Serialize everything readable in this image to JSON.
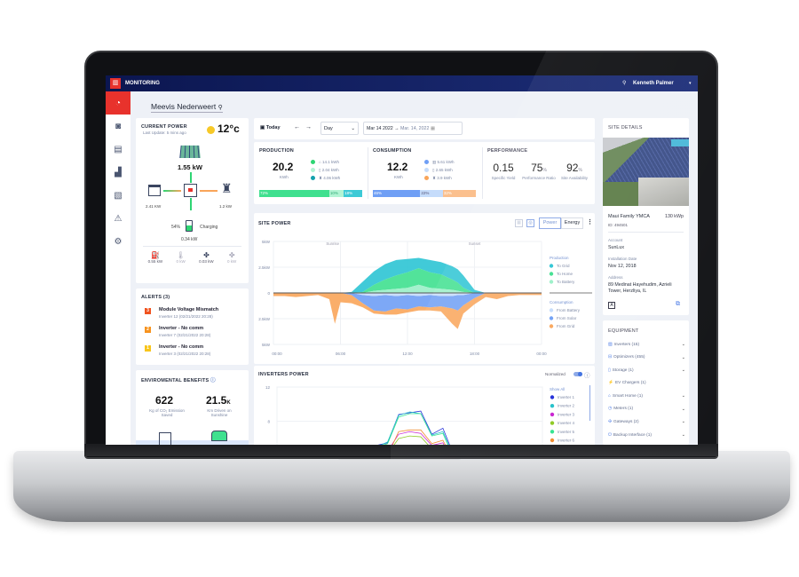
{
  "topbar": {
    "app": "MONITORING",
    "user": "Kenneth Palmer"
  },
  "site": {
    "name": "Meevis Nederweert"
  },
  "current_power": {
    "title": "CURRENT POWER",
    "updated": "Last Update: 5 mins ago",
    "weather": "12°c",
    "solar": "1.55 kW",
    "home": "2.41 KW",
    "grid": "1.2 kW",
    "battery_pct": "54%",
    "battery_state": "Charging",
    "battery_kw": "0.34 kW",
    "devices": [
      "0.55 kW",
      "0 kW",
      "0.03 kW",
      "0 kW"
    ]
  },
  "alerts": {
    "title": "ALERTS (3)",
    "items": [
      {
        "level": "3",
        "title": "Module Voltage Mismatch",
        "sub": "Inverter 12 (02/21/2022 20:28)",
        "color": "#f0521e"
      },
      {
        "level": "2",
        "title": "Inverter - No comm",
        "sub": "Inverter 7 (02/21/2022 20:28)",
        "color": "#f7931e"
      },
      {
        "level": "1",
        "title": "Inverter - No comm",
        "sub": "Inverter 3 (02/21/2022 20:28)",
        "color": "#f8c51c"
      }
    ]
  },
  "env": {
    "title": "ENVIROMENTAL BENEFITS",
    "co2": "622",
    "co2_label": "Kg of CO₂ Emission Saved",
    "km": "21.5",
    "km_unit": "K",
    "km_label": "Km Driven on Sunshine"
  },
  "toolbar": {
    "today": "Today",
    "period": "Day",
    "from": "Mar 14 2022",
    "to": "Mar. 14, 2022"
  },
  "production": {
    "title": "PRODUCTION",
    "value": "20.2",
    "unit": "KWh",
    "items": [
      "14.1 kWh",
      "2.04 kWh",
      "4.06 kWh"
    ],
    "bar": [
      "72%",
      "10%",
      "18%"
    ]
  },
  "consumption": {
    "title": "CONSUMPTION",
    "value": "12.2",
    "unit": "KWh",
    "items": [
      "5.61 kWh",
      "2.65 kWh",
      "3.9 kWh"
    ],
    "bar": [
      "46%",
      "22%",
      "32%"
    ]
  },
  "performance": {
    "title": "PERFORMANCE",
    "items": [
      {
        "value": "0.15",
        "unit": "",
        "label": "Specific Yield"
      },
      {
        "value": "75",
        "unit": "%",
        "label": "Performance Ratio"
      },
      {
        "value": "92",
        "unit": "%",
        "label": "Site Availability"
      }
    ]
  },
  "site_power": {
    "title": "SITE POWER",
    "power": "Power",
    "energy": "Energy",
    "legend_prod": "Production",
    "legend_cons": "Consumption"
  },
  "inverters": {
    "title": "INVERTERS POWER",
    "normalized": "Normalized",
    "show_all": "Show All"
  },
  "site_details": {
    "title": "SITE DETAILS",
    "name": "Maui Family YMCA",
    "kwp": "130 kWp",
    "id": "ID: 494501",
    "account_label": "Account",
    "account": "SunLux",
    "install_label": "Installation Date",
    "install": "Nov 12, 2018",
    "address_label": "Address",
    "address": "89 Medinat Hayehudim, Azrieli Tower, Herzliya, IL"
  },
  "equipment": {
    "title": "EQUIPMENT",
    "items": [
      "Inverters (15)",
      "Optimizers (455)",
      "Storage (1)",
      "EV Chargers (1)",
      "Smart Home (1)",
      "Meters (1)",
      "Gateways (2)",
      "Backup Interface (1)"
    ]
  },
  "chart_data": [
    {
      "type": "area",
      "title": "SITE POWER",
      "ylabel": "",
      "ylim": [
        -5,
        5
      ],
      "y_ticks": [
        "5kW",
        "2.5kW",
        "0",
        "2.5kW",
        "5kW"
      ],
      "x_ticks": [
        "00:00",
        "06:00",
        "12:00",
        "18:00",
        "00:00"
      ],
      "annotations": [
        "Sunrise",
        "Sunset"
      ],
      "grid": true,
      "legend": "right",
      "x": [
        0,
        1,
        2,
        3,
        4,
        5,
        5.5,
        6,
        7,
        8,
        9,
        10,
        11,
        12,
        13,
        14,
        15,
        16,
        16.5,
        17,
        18,
        19,
        20,
        21,
        22,
        23,
        24
      ],
      "series": [
        {
          "name": "To Battery",
          "group": "Production",
          "color": "#9af0c8",
          "values": [
            0,
            0,
            0,
            0,
            0,
            0,
            0,
            0,
            0,
            0,
            0.2,
            0.3,
            0.4,
            0.5,
            0.8,
            0.5,
            0.4,
            0.3,
            0.2,
            0.1,
            0,
            0,
            0,
            0,
            0,
            0,
            0
          ]
        },
        {
          "name": "To Home",
          "group": "Production",
          "color": "#3fe08f",
          "values": [
            0,
            0,
            0,
            0,
            0,
            0,
            0,
            0,
            0,
            0.1,
            0.6,
            1.0,
            1.3,
            1.5,
            1.6,
            1.5,
            1.4,
            1.0,
            0.8,
            0.4,
            0,
            0,
            0,
            0,
            0,
            0,
            0
          ]
        },
        {
          "name": "To Grid",
          "group": "Production",
          "color": "#2cc4d4",
          "values": [
            0,
            0,
            0,
            0,
            0,
            0,
            0,
            0,
            0.1,
            1.0,
            1.3,
            1.5,
            1.5,
            1.3,
            1.0,
            1.2,
            1.2,
            1.3,
            1.3,
            1.2,
            0.3,
            0,
            0,
            0,
            0,
            0,
            0
          ]
        },
        {
          "name": "From Battery",
          "group": "Consumption",
          "color": "#c5dcfb",
          "values": [
            0,
            0,
            0,
            0,
            0,
            0,
            0,
            0,
            0,
            0.2,
            0.3,
            0.2,
            0.3,
            0.2,
            0.3,
            0.2,
            0.3,
            0.3,
            0.2,
            0.2,
            0,
            0,
            0,
            0,
            0,
            0,
            0
          ]
        },
        {
          "name": "From Solar",
          "group": "Consumption",
          "color": "#6f9ff5",
          "values": [
            0,
            0,
            0,
            0,
            0,
            0,
            0,
            0,
            0.2,
            0.8,
            1.4,
            1.6,
            1.2,
            1.4,
            1.0,
            1.2,
            1.0,
            1.2,
            1.5,
            1.0,
            0.5,
            0,
            0,
            0,
            0,
            0,
            0
          ]
        },
        {
          "name": "From Grid",
          "group": "Consumption",
          "color": "#f9a55a",
          "values": [
            0.3,
            0.3,
            0.4,
            0.3,
            0.2,
            0.6,
            3.0,
            0.9,
            0.8,
            0.4,
            0.3,
            0.3,
            0.6,
            0.3,
            0.4,
            0.3,
            0.5,
            1.5,
            1.8,
            0.8,
            0.6,
            0.4,
            0.6,
            0.3,
            0.2,
            0.2,
            0.2
          ]
        }
      ]
    },
    {
      "type": "line",
      "title": "INVERTERS POWER",
      "ylim": [
        0,
        12
      ],
      "y_ticks": [
        "12",
        "8",
        "4"
      ],
      "grid": true,
      "legend": "right",
      "x": [
        6,
        7,
        8,
        9,
        10,
        11,
        12,
        13,
        14,
        15,
        16,
        17,
        18
      ],
      "series": [
        {
          "name": "Inverter 1",
          "color": "#1e2ad8",
          "values": [
            0,
            0.5,
            2,
            5.2,
            5.5,
            8.8,
            9.0,
            9.2,
            6.5,
            7.2,
            4.0,
            1,
            0
          ]
        },
        {
          "name": "Inverter 2",
          "color": "#1fbfc9",
          "values": [
            0,
            0.5,
            2.2,
            5.0,
            5.6,
            8.7,
            9.1,
            8.9,
            6.4,
            6.8,
            3.8,
            1,
            0
          ]
        },
        {
          "name": "Inverter 3",
          "color": "#c81ed0",
          "values": [
            0,
            0.4,
            1.8,
            4.4,
            4.5,
            6.5,
            6.8,
            6.6,
            5.2,
            5.5,
            3.2,
            0.8,
            0
          ]
        },
        {
          "name": "Inverter 4",
          "color": "#8cc81e",
          "values": [
            0,
            0.4,
            1.6,
            4.0,
            4.2,
            6.0,
            6.3,
            6.2,
            4.8,
            5.0,
            3.0,
            0.8,
            0
          ]
        },
        {
          "name": "Inverter 5",
          "color": "#2ee38e",
          "values": [
            0,
            0.5,
            2.0,
            5.0,
            5.4,
            8.5,
            8.9,
            8.9,
            6.3,
            6.6,
            3.7,
            1,
            0
          ]
        },
        {
          "name": "Inverter 6",
          "color": "#f08a2a",
          "values": [
            0,
            0.4,
            1.9,
            4.8,
            4.0,
            6.8,
            7.0,
            7.0,
            5.4,
            5.8,
            3.3,
            0.8,
            0
          ]
        }
      ]
    }
  ]
}
